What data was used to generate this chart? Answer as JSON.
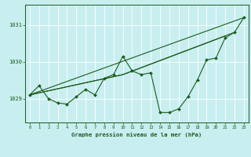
{
  "bg_color": "#c8eef0",
  "grid_color": "#aadddd",
  "line_color": "#1a5c1a",
  "title": "Graphe pression niveau de la mer (hPa)",
  "xlim": [
    -0.5,
    23.5
  ],
  "ylim": [
    1028.35,
    1031.55
  ],
  "yticks": [
    1029,
    1030,
    1031
  ],
  "xticks": [
    0,
    1,
    2,
    3,
    4,
    5,
    6,
    7,
    8,
    9,
    10,
    11,
    12,
    13,
    14,
    15,
    16,
    17,
    18,
    19,
    20,
    21,
    22,
    23
  ],
  "line1_x": [
    0,
    1,
    2,
    3,
    4,
    5,
    6,
    7,
    8,
    9,
    10,
    11,
    12,
    13,
    14,
    15,
    16,
    17,
    18,
    19,
    20,
    21,
    22,
    23
  ],
  "line1_y": [
    1029.1,
    1029.35,
    1029.0,
    1028.88,
    1028.85,
    1029.05,
    1029.25,
    1029.1,
    1029.55,
    1029.65,
    1030.15,
    1029.75,
    1029.65,
    1029.7,
    1028.62,
    1028.62,
    1028.72,
    1029.05,
    1029.5,
    1030.05,
    1030.1,
    1030.65,
    1030.8,
    1031.2
  ],
  "line2_x": [
    0,
    10,
    21
  ],
  "line2_y": [
    1029.1,
    1029.65,
    1030.7
  ],
  "line3_x": [
    0,
    10,
    22
  ],
  "line3_y": [
    1029.1,
    1029.65,
    1030.8
  ],
  "line4_x": [
    0,
    23
  ],
  "line4_y": [
    1029.1,
    1031.2
  ]
}
